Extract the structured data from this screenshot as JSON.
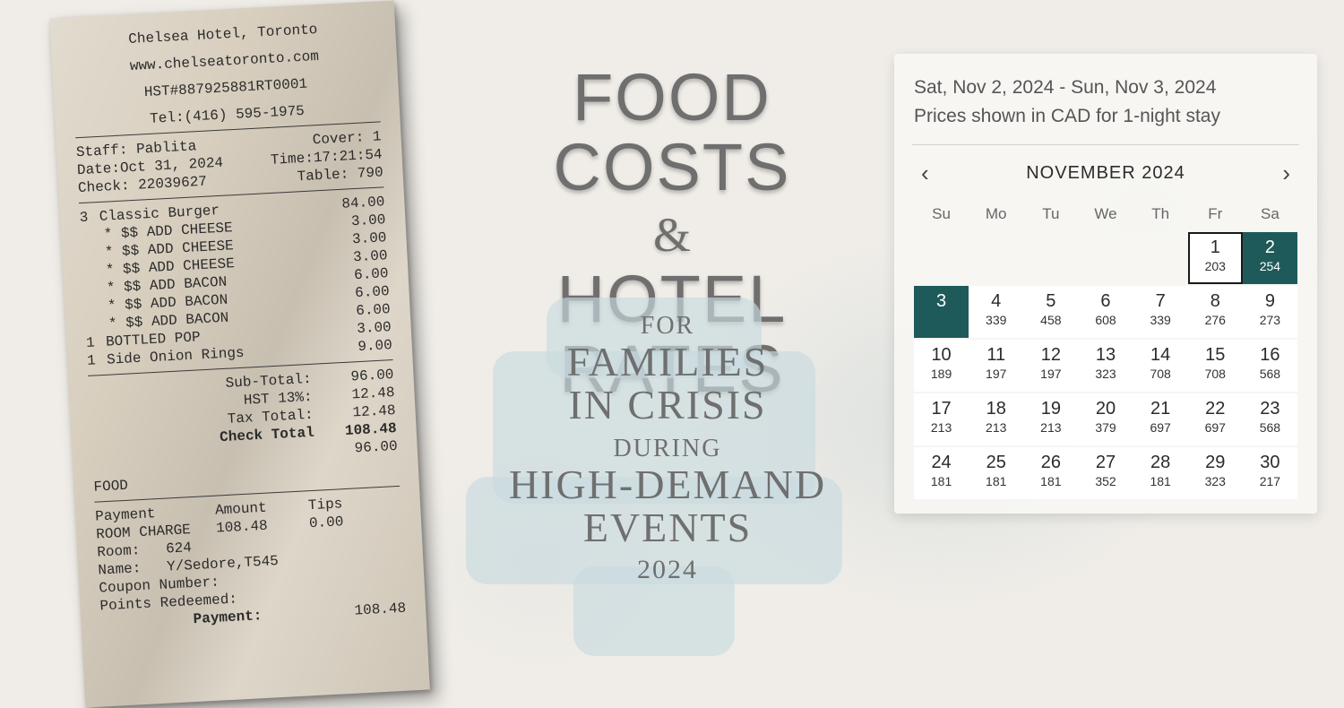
{
  "receipt": {
    "hotel": "Chelsea Hotel, Toronto",
    "website": "www.chelseatoronto.com",
    "hst": "HST#887925881RT0001",
    "tel": "Tel:(416) 595-1975",
    "staff_label": "Staff:",
    "staff": "Pablita",
    "cover_label": "Cover:",
    "cover": "1",
    "date_label": "Date:",
    "date": "Oct 31, 2024",
    "time_label": "Time:",
    "time": "17:21:54",
    "check_label": "Check:",
    "check": "22039627",
    "table_label": "Table:",
    "table": "790",
    "items": [
      {
        "qty": "3",
        "name": "Classic Burger",
        "amount": "84.00"
      },
      {
        "qty": "",
        "name": "* $$ ADD CHEESE",
        "amount": "3.00",
        "mod": true
      },
      {
        "qty": "",
        "name": "* $$ ADD CHEESE",
        "amount": "3.00",
        "mod": true
      },
      {
        "qty": "",
        "name": "* $$ ADD CHEESE",
        "amount": "3.00",
        "mod": true
      },
      {
        "qty": "",
        "name": "* $$ ADD BACON",
        "amount": "6.00",
        "mod": true
      },
      {
        "qty": "",
        "name": "* $$ ADD BACON",
        "amount": "6.00",
        "mod": true
      },
      {
        "qty": "",
        "name": "* $$ ADD BACON",
        "amount": "6.00",
        "mod": true
      },
      {
        "qty": "1",
        "name": "BOTTLED POP",
        "amount": "3.00"
      },
      {
        "qty": "1",
        "name": "Side Onion Rings",
        "amount": "9.00"
      }
    ],
    "totals": [
      {
        "label": "Sub-Total:",
        "amount": "96.00"
      },
      {
        "label": "HST 13%:",
        "amount": "12.48"
      },
      {
        "label": "Tax Total:",
        "amount": "12.48"
      },
      {
        "label": "Check Total",
        "amount": "108.48",
        "bold": true
      },
      {
        "label": "",
        "amount": "96.00"
      }
    ],
    "food_label": "FOOD",
    "pay_header": {
      "c1": "Payment",
      "c2": "Amount",
      "c3": "Tips"
    },
    "pay_row": {
      "c1": "ROOM CHARGE",
      "c2": "108.48",
      "c3": "0.00"
    },
    "room_label": "Room:",
    "room": "624",
    "name_label": "Name:",
    "name": "Y/Sedore,T545",
    "coupon_label": "Coupon Number:",
    "points_label": "Points Redeemed:",
    "footer_payment_label": "Payment:",
    "footer_payment_amount": "108.48"
  },
  "title": {
    "line1": "FOOD COSTS",
    "amp": "&",
    "line2": "HOTEL RATES",
    "sub_for": "FOR",
    "sub_families": "FAMILIES",
    "sub_incrisis": "IN CRISIS",
    "sub_during": "DURING",
    "sub_high": "HIGH-DEMAND",
    "sub_events": "EVENTS",
    "sub_year": "2024"
  },
  "calendar": {
    "range_line1": "Sat, Nov 2, 2024 - Sun, Nov 3, 2024",
    "range_line2": "Prices shown in CAD for 1-night stay",
    "month_title": "NOVEMBER 2024",
    "dow": [
      "Su",
      "Mo",
      "Tu",
      "We",
      "Th",
      "Fr",
      "Sa"
    ],
    "colors": {
      "selected_bg": "#1f5a5a",
      "selected_fg": "#ffffff"
    },
    "first_weekday_index": 5,
    "days": [
      {
        "d": 1,
        "price": 203,
        "outlined": true
      },
      {
        "d": 2,
        "price": 254,
        "selected": true
      },
      {
        "d": 3,
        "price": null,
        "selected": true
      },
      {
        "d": 4,
        "price": 339
      },
      {
        "d": 5,
        "price": 458
      },
      {
        "d": 6,
        "price": 608
      },
      {
        "d": 7,
        "price": 339
      },
      {
        "d": 8,
        "price": 276
      },
      {
        "d": 9,
        "price": 273
      },
      {
        "d": 10,
        "price": 189
      },
      {
        "d": 11,
        "price": 197
      },
      {
        "d": 12,
        "price": 197
      },
      {
        "d": 13,
        "price": 323
      },
      {
        "d": 14,
        "price": 708
      },
      {
        "d": 15,
        "price": 708
      },
      {
        "d": 16,
        "price": 568
      },
      {
        "d": 17,
        "price": 213
      },
      {
        "d": 18,
        "price": 213
      },
      {
        "d": 19,
        "price": 213
      },
      {
        "d": 20,
        "price": 379
      },
      {
        "d": 21,
        "price": 697
      },
      {
        "d": 22,
        "price": 697
      },
      {
        "d": 23,
        "price": 568
      },
      {
        "d": 24,
        "price": 181
      },
      {
        "d": 25,
        "price": 181
      },
      {
        "d": 26,
        "price": 181
      },
      {
        "d": 27,
        "price": 352
      },
      {
        "d": 28,
        "price": 181
      },
      {
        "d": 29,
        "price": 323
      },
      {
        "d": 30,
        "price": 217
      }
    ]
  }
}
